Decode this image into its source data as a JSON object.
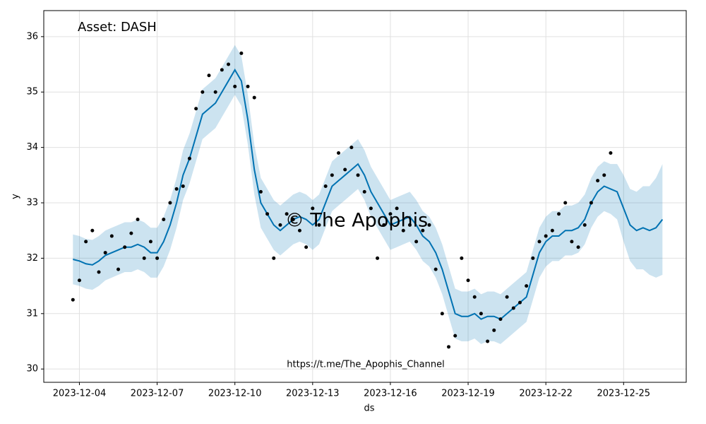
{
  "chart_data": {
    "type": "line",
    "title": "Asset: DASH",
    "watermark": "© The Apophis",
    "annotation": "https://t.me/The_Apophis_Channel",
    "xlabel": "ds",
    "ylabel": "y",
    "xlim": [
      "2023-12-02 15:00",
      "2023-12-27 10:00"
    ],
    "xticks": [
      "2023-12-04",
      "2023-12-07",
      "2023-12-10",
      "2023-12-13",
      "2023-12-16",
      "2023-12-19",
      "2023-12-22",
      "2023-12-25"
    ],
    "ylim": [
      29.76,
      36.47
    ],
    "yticks": [
      30,
      31,
      32,
      33,
      34,
      35,
      36
    ],
    "grid": true,
    "observed": {
      "color": "#000000",
      "x": [
        "2023-12-03 18:00",
        "2023-12-04 00:00",
        "2023-12-04 06:00",
        "2023-12-04 12:00",
        "2023-12-04 18:00",
        "2023-12-05 00:00",
        "2023-12-05 06:00",
        "2023-12-05 12:00",
        "2023-12-05 18:00",
        "2023-12-06 00:00",
        "2023-12-06 06:00",
        "2023-12-06 12:00",
        "2023-12-06 18:00",
        "2023-12-07 00:00",
        "2023-12-07 06:00",
        "2023-12-07 12:00",
        "2023-12-07 18:00",
        "2023-12-08 00:00",
        "2023-12-08 06:00",
        "2023-12-08 12:00",
        "2023-12-08 18:00",
        "2023-12-09 00:00",
        "2023-12-09 06:00",
        "2023-12-09 12:00",
        "2023-12-09 18:00",
        "2023-12-10 00:00",
        "2023-12-10 06:00",
        "2023-12-10 12:00",
        "2023-12-10 18:00",
        "2023-12-11 00:00",
        "2023-12-11 06:00",
        "2023-12-11 12:00",
        "2023-12-11 18:00",
        "2023-12-12 00:00",
        "2023-12-12 06:00",
        "2023-12-12 12:00",
        "2023-12-12 18:00",
        "2023-12-13 00:00",
        "2023-12-13 06:00",
        "2023-12-13 12:00",
        "2023-12-13 18:00",
        "2023-12-14 00:00",
        "2023-12-14 06:00",
        "2023-12-14 12:00",
        "2023-12-14 18:00",
        "2023-12-15 00:00",
        "2023-12-15 06:00",
        "2023-12-15 12:00",
        "2023-12-15 18:00",
        "2023-12-16 00:00",
        "2023-12-16 06:00",
        "2023-12-16 12:00",
        "2023-12-16 18:00",
        "2023-12-17 00:00",
        "2023-12-17 06:00",
        "2023-12-17 12:00",
        "2023-12-17 18:00",
        "2023-12-18 00:00",
        "2023-12-18 06:00",
        "2023-12-18 12:00",
        "2023-12-18 18:00",
        "2023-12-19 00:00",
        "2023-12-19 06:00",
        "2023-12-19 12:00",
        "2023-12-19 18:00",
        "2023-12-20 00:00",
        "2023-12-20 06:00",
        "2023-12-20 12:00",
        "2023-12-20 18:00",
        "2023-12-21 00:00",
        "2023-12-21 06:00",
        "2023-12-21 12:00",
        "2023-12-21 18:00",
        "2023-12-22 00:00",
        "2023-12-22 06:00",
        "2023-12-22 12:00",
        "2023-12-22 18:00",
        "2023-12-23 00:00",
        "2023-12-23 06:00",
        "2023-12-23 12:00",
        "2023-12-23 18:00",
        "2023-12-24 00:00",
        "2023-12-24 06:00",
        "2023-12-24 12:00"
      ],
      "values": [
        31.25,
        31.6,
        32.3,
        32.5,
        31.75,
        32.1,
        32.4,
        31.8,
        32.2,
        32.45,
        32.7,
        32.0,
        32.3,
        32.0,
        32.7,
        33.0,
        33.25,
        33.3,
        33.8,
        34.7,
        35.0,
        35.3,
        35.0,
        35.4,
        35.5,
        35.1,
        35.7,
        35.1,
        34.9,
        33.2,
        32.8,
        32.0,
        32.6,
        32.8,
        32.7,
        32.5,
        32.2,
        32.9,
        32.6,
        33.3,
        33.5,
        33.9,
        33.6,
        34.0,
        33.5,
        33.2,
        32.9,
        32.0,
        32.6,
        32.8,
        32.9,
        32.5,
        32.6,
        32.3,
        32.5,
        32.6,
        31.8,
        31.0,
        30.4,
        30.6,
        32.0,
        31.6,
        31.3,
        31.0,
        30.5,
        30.7,
        30.9,
        31.3,
        31.1,
        31.2,
        31.5,
        32.0,
        32.3,
        32.4,
        32.5,
        32.8,
        33.0,
        32.3,
        32.2,
        32.6,
        33.0,
        33.4,
        33.5,
        33.9
      ]
    },
    "forecast": {
      "color": "#0072B2",
      "band_color": "#0072B2",
      "x": [
        "2023-12-03 18:00",
        "2023-12-04 00:00",
        "2023-12-04 06:00",
        "2023-12-04 12:00",
        "2023-12-04 18:00",
        "2023-12-05 00:00",
        "2023-12-05 06:00",
        "2023-12-05 12:00",
        "2023-12-05 18:00",
        "2023-12-06 00:00",
        "2023-12-06 06:00",
        "2023-12-06 12:00",
        "2023-12-06 18:00",
        "2023-12-07 00:00",
        "2023-12-07 06:00",
        "2023-12-07 12:00",
        "2023-12-07 18:00",
        "2023-12-08 00:00",
        "2023-12-08 06:00",
        "2023-12-08 12:00",
        "2023-12-08 18:00",
        "2023-12-09 00:00",
        "2023-12-09 06:00",
        "2023-12-09 12:00",
        "2023-12-09 18:00",
        "2023-12-10 00:00",
        "2023-12-10 06:00",
        "2023-12-10 12:00",
        "2023-12-10 18:00",
        "2023-12-11 00:00",
        "2023-12-11 06:00",
        "2023-12-11 12:00",
        "2023-12-11 18:00",
        "2023-12-12 00:00",
        "2023-12-12 06:00",
        "2023-12-12 12:00",
        "2023-12-12 18:00",
        "2023-12-13 00:00",
        "2023-12-13 06:00",
        "2023-12-13 12:00",
        "2023-12-13 18:00",
        "2023-12-14 00:00",
        "2023-12-14 06:00",
        "2023-12-14 12:00",
        "2023-12-14 18:00",
        "2023-12-15 00:00",
        "2023-12-15 06:00",
        "2023-12-15 12:00",
        "2023-12-15 18:00",
        "2023-12-16 00:00",
        "2023-12-16 06:00",
        "2023-12-16 12:00",
        "2023-12-16 18:00",
        "2023-12-17 00:00",
        "2023-12-17 06:00",
        "2023-12-17 12:00",
        "2023-12-17 18:00",
        "2023-12-18 00:00",
        "2023-12-18 06:00",
        "2023-12-18 12:00",
        "2023-12-18 18:00",
        "2023-12-19 00:00",
        "2023-12-19 06:00",
        "2023-12-19 12:00",
        "2023-12-19 18:00",
        "2023-12-20 00:00",
        "2023-12-20 06:00",
        "2023-12-20 12:00",
        "2023-12-20 18:00",
        "2023-12-21 00:00",
        "2023-12-21 06:00",
        "2023-12-21 12:00",
        "2023-12-21 18:00",
        "2023-12-22 00:00",
        "2023-12-22 06:00",
        "2023-12-22 12:00",
        "2023-12-22 18:00",
        "2023-12-23 00:00",
        "2023-12-23 06:00",
        "2023-12-23 12:00",
        "2023-12-23 18:00",
        "2023-12-24 00:00",
        "2023-12-24 06:00",
        "2023-12-24 12:00",
        "2023-12-24 18:00",
        "2023-12-25 00:00",
        "2023-12-25 06:00",
        "2023-12-25 12:00",
        "2023-12-25 18:00",
        "2023-12-26 00:00",
        "2023-12-26 06:00",
        "2023-12-26 12:00"
      ],
      "values": [
        31.98,
        31.95,
        31.9,
        31.88,
        31.95,
        32.05,
        32.1,
        32.15,
        32.2,
        32.2,
        32.25,
        32.2,
        32.1,
        32.1,
        32.3,
        32.6,
        33.0,
        33.5,
        33.8,
        34.2,
        34.6,
        34.7,
        34.8,
        35.0,
        35.2,
        35.4,
        35.2,
        34.5,
        33.6,
        33.0,
        32.8,
        32.6,
        32.5,
        32.6,
        32.7,
        32.75,
        32.7,
        32.6,
        32.7,
        33.0,
        33.3,
        33.4,
        33.5,
        33.6,
        33.7,
        33.5,
        33.2,
        33.0,
        32.8,
        32.6,
        32.65,
        32.7,
        32.75,
        32.6,
        32.4,
        32.3,
        32.1,
        31.8,
        31.4,
        31.0,
        30.95,
        30.95,
        31.0,
        30.9,
        30.95,
        30.95,
        30.9,
        31.0,
        31.1,
        31.2,
        31.3,
        31.7,
        32.1,
        32.3,
        32.4,
        32.4,
        32.5,
        32.5,
        32.55,
        32.7,
        33.0,
        33.2,
        33.3,
        33.25,
        33.2,
        32.9,
        32.6,
        32.5,
        32.55,
        32.5,
        32.55,
        32.7
      ],
      "lower": [
        31.53,
        31.5,
        31.45,
        31.43,
        31.5,
        31.6,
        31.65,
        31.7,
        31.75,
        31.75,
        31.8,
        31.75,
        31.65,
        31.65,
        31.85,
        32.15,
        32.55,
        33.05,
        33.35,
        33.75,
        34.15,
        34.25,
        34.35,
        34.55,
        34.75,
        34.95,
        34.75,
        34.05,
        33.15,
        32.55,
        32.35,
        32.15,
        32.05,
        32.15,
        32.25,
        32.3,
        32.25,
        32.15,
        32.25,
        32.55,
        32.85,
        32.95,
        33.05,
        33.15,
        33.25,
        33.05,
        32.75,
        32.55,
        32.35,
        32.15,
        32.2,
        32.25,
        32.3,
        32.15,
        31.95,
        31.85,
        31.65,
        31.35,
        30.95,
        30.55,
        30.5,
        30.5,
        30.55,
        30.45,
        30.5,
        30.5,
        30.45,
        30.55,
        30.65,
        30.75,
        30.85,
        31.25,
        31.65,
        31.85,
        31.95,
        31.95,
        32.05,
        32.05,
        32.1,
        32.25,
        32.55,
        32.75,
        32.85,
        32.8,
        32.7,
        32.3,
        31.95,
        31.8,
        31.8,
        31.7,
        31.65,
        31.7
      ],
      "upper": [
        32.43,
        32.4,
        32.35,
        32.33,
        32.4,
        32.5,
        32.55,
        32.6,
        32.65,
        32.65,
        32.7,
        32.65,
        32.55,
        32.55,
        32.75,
        33.05,
        33.45,
        33.95,
        34.25,
        34.65,
        35.05,
        35.15,
        35.25,
        35.45,
        35.65,
        35.85,
        35.65,
        34.95,
        34.05,
        33.45,
        33.25,
        33.05,
        32.95,
        33.05,
        33.15,
        33.2,
        33.15,
        33.05,
        33.15,
        33.45,
        33.75,
        33.85,
        33.95,
        34.05,
        34.15,
        33.95,
        33.65,
        33.45,
        33.25,
        33.05,
        33.1,
        33.15,
        33.2,
        33.05,
        32.85,
        32.75,
        32.55,
        32.25,
        31.85,
        31.45,
        31.4,
        31.4,
        31.45,
        31.35,
        31.4,
        31.4,
        31.35,
        31.45,
        31.55,
        31.65,
        31.75,
        32.15,
        32.55,
        32.75,
        32.85,
        32.85,
        32.95,
        32.95,
        33.0,
        33.15,
        33.45,
        33.65,
        33.75,
        33.7,
        33.7,
        33.5,
        33.25,
        33.2,
        33.3,
        33.3,
        33.45,
        33.7
      ]
    }
  }
}
